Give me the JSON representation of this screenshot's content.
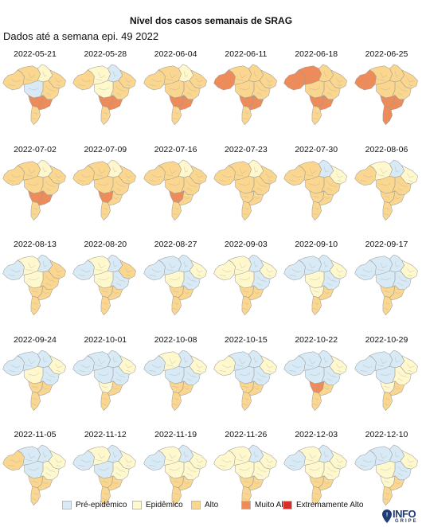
{
  "title": "Nível dos casos semanais de SRAG",
  "subtitle": "Dados até a semana epi. 49 2022",
  "colors": {
    "pre": "#d8eaf5",
    "epi": "#fff8cc",
    "alto": "#fad68f",
    "muito": "#ef8b58",
    "extremo": "#d7302b"
  },
  "panels": [
    {
      "date": "2022-05-21",
      "levels": [
        "alto",
        "alto",
        "epi",
        "alto",
        "pre",
        "alto",
        "muito",
        "muito",
        "alto"
      ]
    },
    {
      "date": "2022-05-28",
      "levels": [
        "alto",
        "epi",
        "pre",
        "alto",
        "epi",
        "alto",
        "muito",
        "muito",
        "alto"
      ]
    },
    {
      "date": "2022-06-04",
      "levels": [
        "alto",
        "alto",
        "epi",
        "alto",
        "alto",
        "alto",
        "muito",
        "muito",
        "alto"
      ]
    },
    {
      "date": "2022-06-11",
      "levels": [
        "muito",
        "alto",
        "alto",
        "alto",
        "alto",
        "alto",
        "muito",
        "muito",
        "alto"
      ]
    },
    {
      "date": "2022-06-18",
      "levels": [
        "muito",
        "muito",
        "alto",
        "alto",
        "alto",
        "alto",
        "muito",
        "muito",
        "alto"
      ]
    },
    {
      "date": "2022-06-25",
      "levels": [
        "muito",
        "alto",
        "alto",
        "alto",
        "alto",
        "alto",
        "muito",
        "muito",
        "muito"
      ]
    },
    {
      "date": "2022-07-02",
      "levels": [
        "alto",
        "alto",
        "epi",
        "alto",
        "alto",
        "alto",
        "muito",
        "muito",
        "alto"
      ]
    },
    {
      "date": "2022-07-09",
      "levels": [
        "alto",
        "alto",
        "epi",
        "alto",
        "alto",
        "alto",
        "muito",
        "alto",
        "alto"
      ]
    },
    {
      "date": "2022-07-16",
      "levels": [
        "alto",
        "alto",
        "epi",
        "alto",
        "alto",
        "alto",
        "muito",
        "alto",
        "alto"
      ]
    },
    {
      "date": "2022-07-23",
      "levels": [
        "alto",
        "alto",
        "epi",
        "alto",
        "alto",
        "alto",
        "alto",
        "alto",
        "alto"
      ]
    },
    {
      "date": "2022-07-30",
      "levels": [
        "alto",
        "alto",
        "pre",
        "epi",
        "alto",
        "alto",
        "alto",
        "alto",
        "alto"
      ]
    },
    {
      "date": "2022-08-06",
      "levels": [
        "alto",
        "epi",
        "pre",
        "epi",
        "alto",
        "alto",
        "alto",
        "alto",
        "alto"
      ]
    },
    {
      "date": "2022-08-13",
      "levels": [
        "pre",
        "epi",
        "pre",
        "alto",
        "epi",
        "alto",
        "alto",
        "alto",
        "alto"
      ]
    },
    {
      "date": "2022-08-20",
      "levels": [
        "pre",
        "epi",
        "pre",
        "alto",
        "epi",
        "pre",
        "alto",
        "alto",
        "alto"
      ]
    },
    {
      "date": "2022-08-27",
      "levels": [
        "pre",
        "pre",
        "pre",
        "epi",
        "epi",
        "pre",
        "alto",
        "alto",
        "alto"
      ]
    },
    {
      "date": "2022-09-03",
      "levels": [
        "epi",
        "epi",
        "pre",
        "epi",
        "epi",
        "pre",
        "alto",
        "alto",
        "alto"
      ]
    },
    {
      "date": "2022-09-10",
      "levels": [
        "pre",
        "pre",
        "pre",
        "epi",
        "epi",
        "pre",
        "epi",
        "alto",
        "alto"
      ]
    },
    {
      "date": "2022-09-17",
      "levels": [
        "pre",
        "pre",
        "pre",
        "epi",
        "pre",
        "pre",
        "alto",
        "alto",
        "alto"
      ]
    },
    {
      "date": "2022-09-24",
      "levels": [
        "pre",
        "pre",
        "pre",
        "epi",
        "epi",
        "pre",
        "alto",
        "alto",
        "alto"
      ]
    },
    {
      "date": "2022-10-01",
      "levels": [
        "pre",
        "pre",
        "pre",
        "epi",
        "pre",
        "pre",
        "epi",
        "alto",
        "alto"
      ]
    },
    {
      "date": "2022-10-08",
      "levels": [
        "pre",
        "epi",
        "pre",
        "epi",
        "pre",
        "pre",
        "alto",
        "alto",
        "alto"
      ]
    },
    {
      "date": "2022-10-15",
      "levels": [
        "epi",
        "pre",
        "pre",
        "epi",
        "pre",
        "pre",
        "alto",
        "alto",
        "alto"
      ]
    },
    {
      "date": "2022-10-22",
      "levels": [
        "pre",
        "pre",
        "pre",
        "epi",
        "pre",
        "pre",
        "muito",
        "alto",
        "alto"
      ]
    },
    {
      "date": "2022-10-29",
      "levels": [
        "pre",
        "pre",
        "pre",
        "epi",
        "pre",
        "epi",
        "epi",
        "alto",
        "alto"
      ]
    },
    {
      "date": "2022-11-05",
      "levels": [
        "alto",
        "pre",
        "pre",
        "epi",
        "pre",
        "epi",
        "alto",
        "alto",
        "alto"
      ]
    },
    {
      "date": "2022-11-12",
      "levels": [
        "pre",
        "epi",
        "pre",
        "epi",
        "pre",
        "epi",
        "alto",
        "alto",
        "alto"
      ]
    },
    {
      "date": "2022-11-19",
      "levels": [
        "pre",
        "epi",
        "pre",
        "epi",
        "epi",
        "epi",
        "alto",
        "alto",
        "alto"
      ]
    },
    {
      "date": "2022-11-26",
      "levels": [
        "epi",
        "epi",
        "pre",
        "epi",
        "epi",
        "epi",
        "alto",
        "alto",
        "alto"
      ]
    },
    {
      "date": "2022-12-03",
      "levels": [
        "pre",
        "epi",
        "pre",
        "epi",
        "epi",
        "epi",
        "alto",
        "alto",
        "alto"
      ]
    },
    {
      "date": "2022-12-10",
      "levels": [
        "pre",
        "pre",
        "pre",
        "epi",
        "epi",
        "pre",
        "epi",
        "alto",
        "alto"
      ]
    }
  ],
  "legend": [
    {
      "key": "pre",
      "label": "Pré-epidêmico"
    },
    {
      "key": "epi",
      "label": "Epidêmico"
    },
    {
      "key": "alto",
      "label": "Alto"
    },
    {
      "key": "muito",
      "label": "Muito Alto"
    },
    {
      "key": "extremo",
      "label": "Extremamente Alto"
    }
  ],
  "logo": {
    "top": "INFO",
    "bottom": "GRIPE"
  }
}
